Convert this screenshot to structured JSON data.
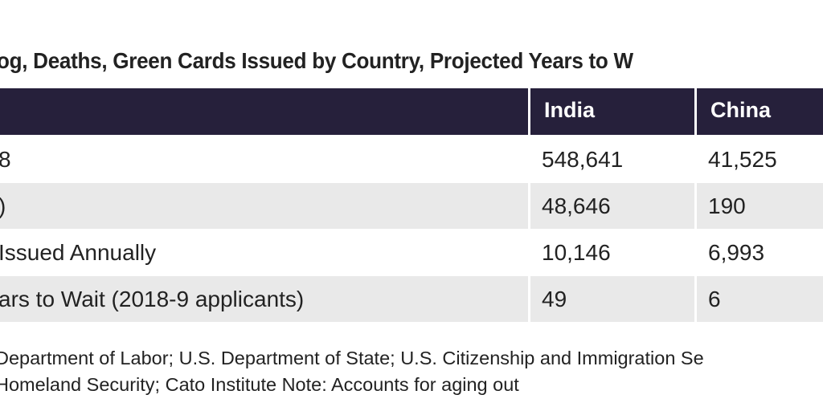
{
  "header": {
    "title": "og, Deaths, Green Cards Issued by Country, Projected Years to W"
  },
  "table": {
    "columns": [
      "India",
      "China"
    ],
    "rows": [
      {
        "label": "8",
        "cells": [
          "548,641",
          "41,525"
        ]
      },
      {
        "label": ")",
        "cells": [
          "48,646",
          "190"
        ]
      },
      {
        "label": "Issued Annually",
        "cells": [
          "10,146",
          "6,993"
        ]
      },
      {
        "label": "ars to Wait (2018-9 applicants)",
        "cells": [
          "49",
          "6"
        ]
      }
    ]
  },
  "footer": {
    "lines": [
      "Department of Labor; U.S. Department of State; U.S. Citizenship and Immigration Se",
      "Homeland Security; Cato Institute Note: Accounts for aging out"
    ]
  }
}
